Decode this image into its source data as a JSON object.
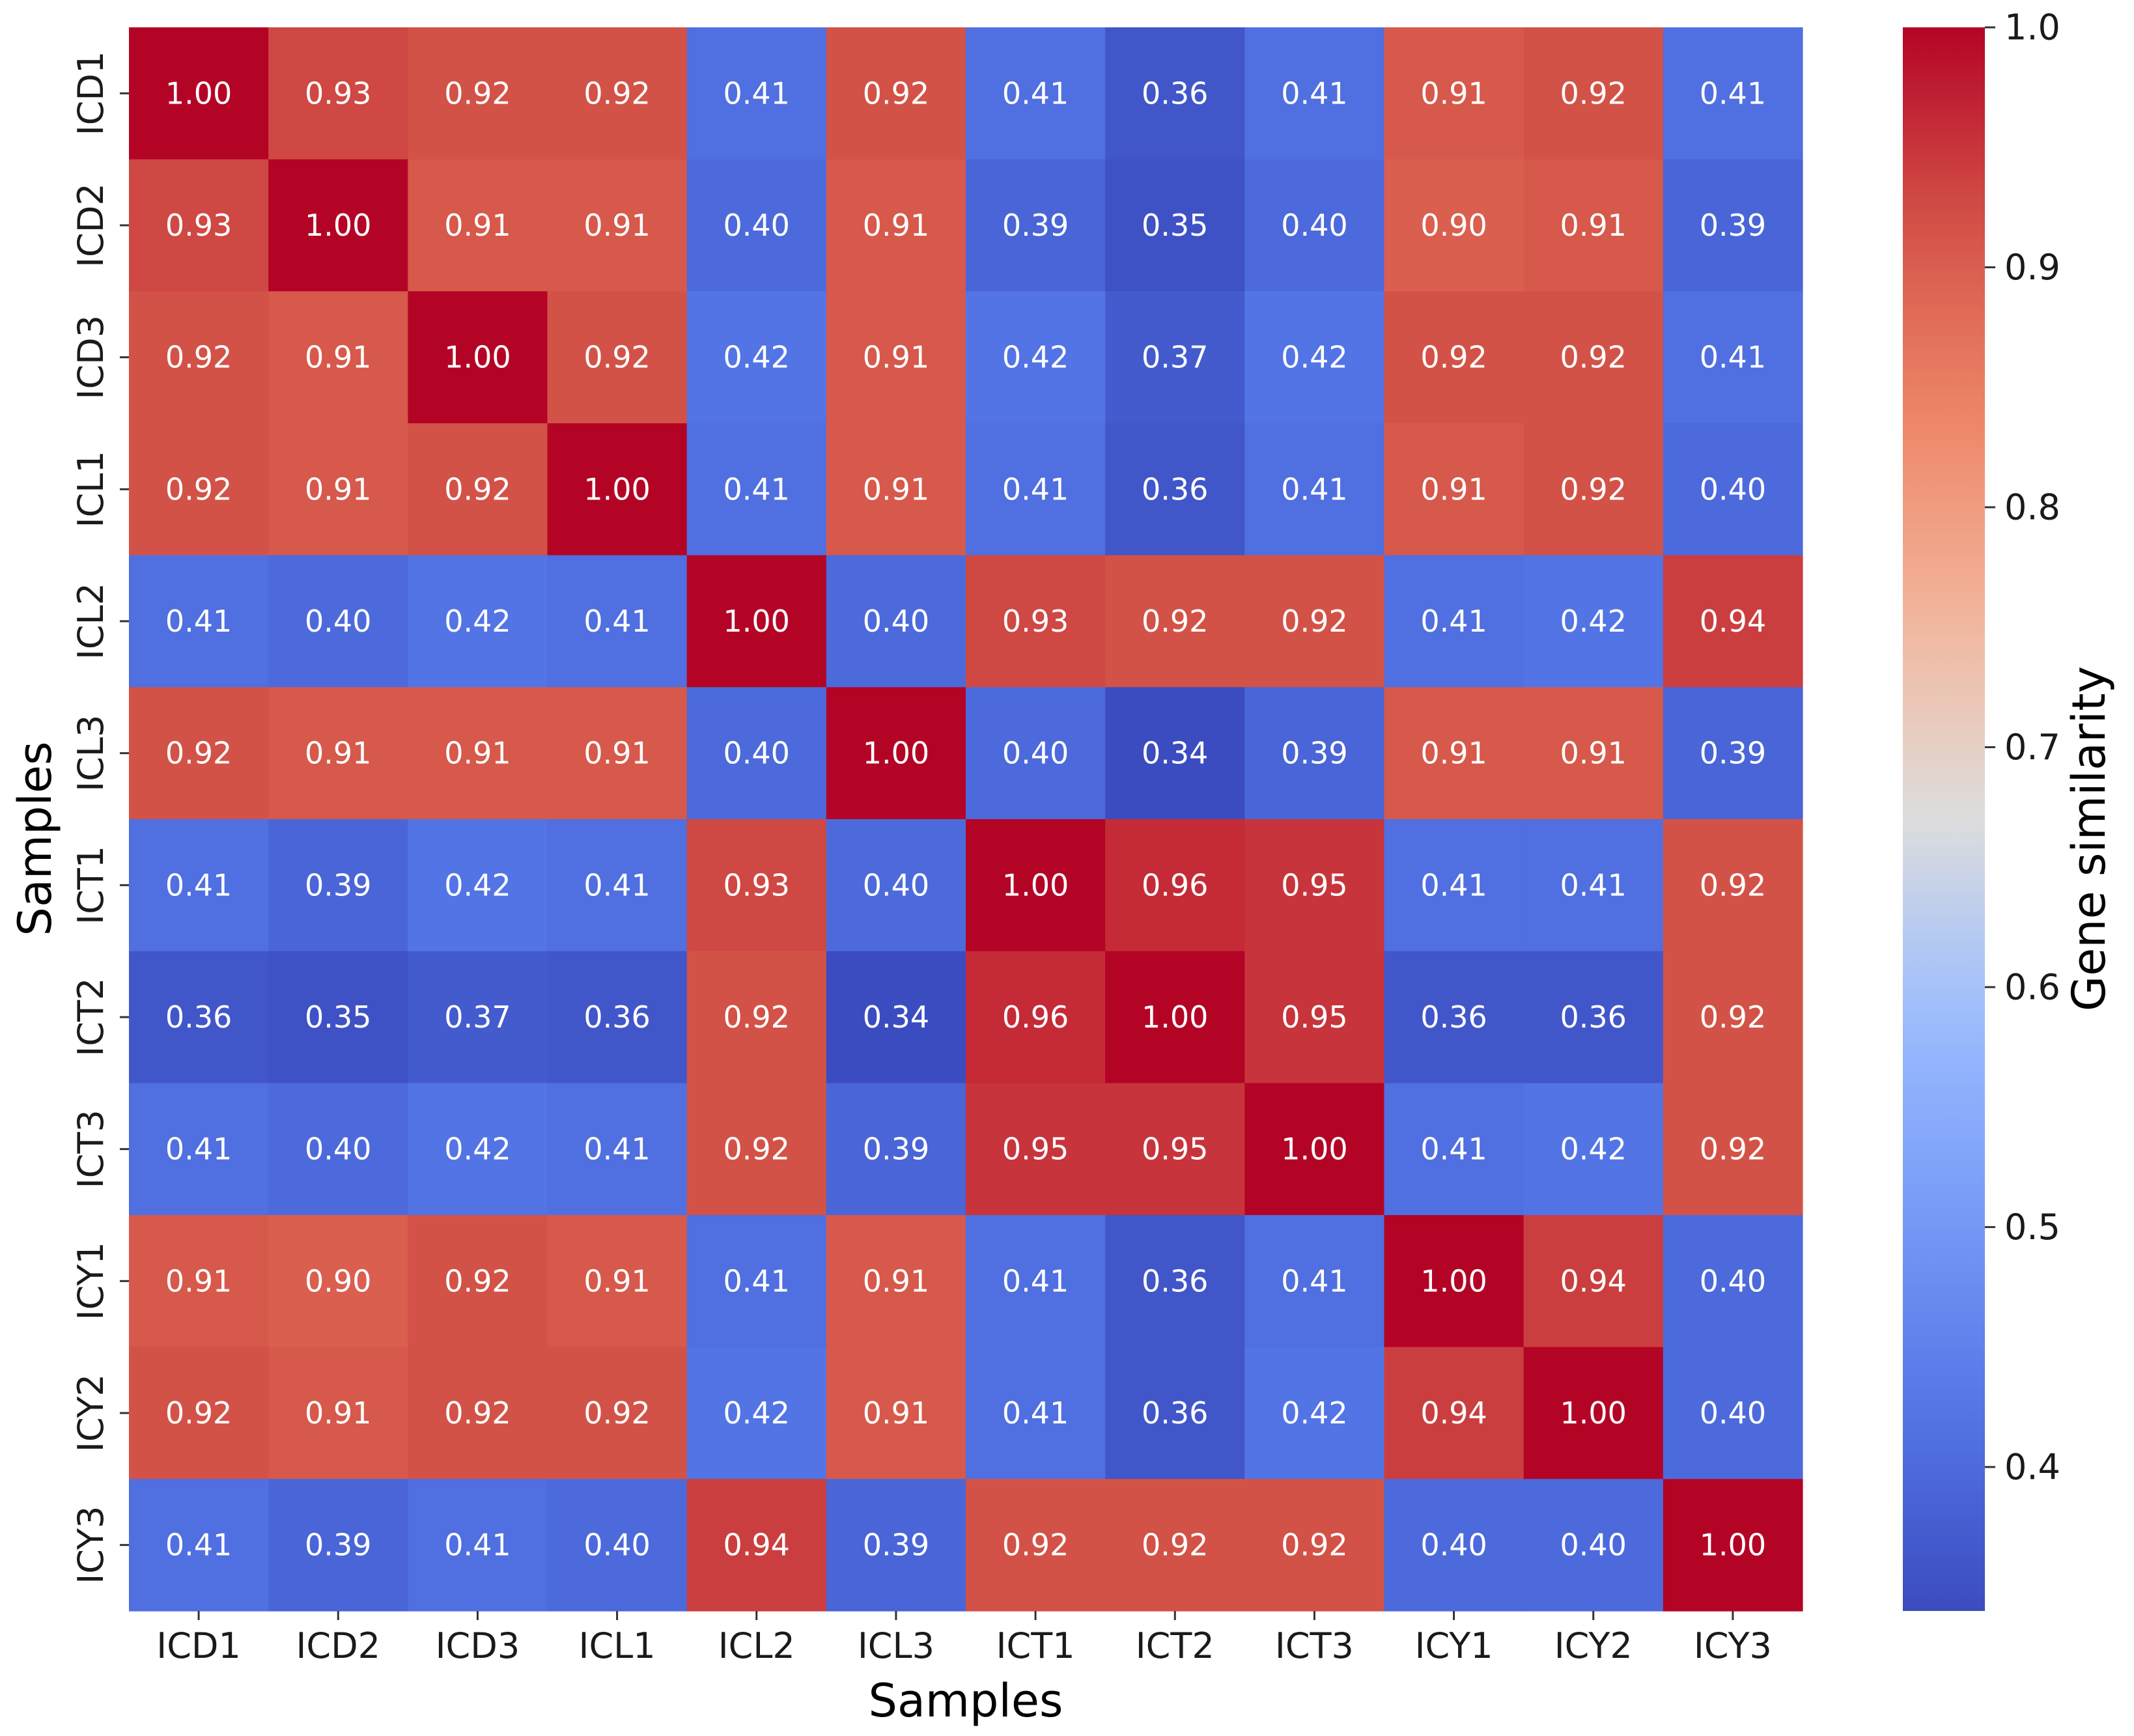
{
  "chart_data": {
    "type": "heatmap",
    "x_categories": [
      "ICD1",
      "ICD2",
      "ICD3",
      "ICL1",
      "ICL2",
      "ICL3",
      "ICT1",
      "ICT2",
      "ICT3",
      "ICY1",
      "ICY2",
      "ICY3"
    ],
    "y_categories": [
      "ICD1",
      "ICD2",
      "ICD3",
      "ICL1",
      "ICL2",
      "ICL3",
      "ICT1",
      "ICT2",
      "ICT3",
      "ICY1",
      "ICY2",
      "ICY3"
    ],
    "values": [
      [
        1.0,
        0.93,
        0.92,
        0.92,
        0.41,
        0.92,
        0.41,
        0.36,
        0.41,
        0.91,
        0.92,
        0.41
      ],
      [
        0.93,
        1.0,
        0.91,
        0.91,
        0.4,
        0.91,
        0.39,
        0.35,
        0.4,
        0.9,
        0.91,
        0.39
      ],
      [
        0.92,
        0.91,
        1.0,
        0.92,
        0.42,
        0.91,
        0.42,
        0.37,
        0.42,
        0.92,
        0.92,
        0.41
      ],
      [
        0.92,
        0.91,
        0.92,
        1.0,
        0.41,
        0.91,
        0.41,
        0.36,
        0.41,
        0.91,
        0.92,
        0.4
      ],
      [
        0.41,
        0.4,
        0.42,
        0.41,
        1.0,
        0.4,
        0.93,
        0.92,
        0.92,
        0.41,
        0.42,
        0.94
      ],
      [
        0.92,
        0.91,
        0.91,
        0.91,
        0.4,
        1.0,
        0.4,
        0.34,
        0.39,
        0.91,
        0.91,
        0.39
      ],
      [
        0.41,
        0.39,
        0.42,
        0.41,
        0.93,
        0.4,
        1.0,
        0.96,
        0.95,
        0.41,
        0.41,
        0.92
      ],
      [
        0.36,
        0.35,
        0.37,
        0.36,
        0.92,
        0.34,
        0.96,
        1.0,
        0.95,
        0.36,
        0.36,
        0.92
      ],
      [
        0.41,
        0.4,
        0.42,
        0.41,
        0.92,
        0.39,
        0.95,
        0.95,
        1.0,
        0.41,
        0.42,
        0.92
      ],
      [
        0.91,
        0.9,
        0.92,
        0.91,
        0.41,
        0.91,
        0.41,
        0.36,
        0.41,
        1.0,
        0.94,
        0.4
      ],
      [
        0.92,
        0.91,
        0.92,
        0.92,
        0.42,
        0.91,
        0.41,
        0.36,
        0.42,
        0.94,
        1.0,
        0.4
      ],
      [
        0.41,
        0.39,
        0.41,
        0.4,
        0.94,
        0.39,
        0.92,
        0.92,
        0.92,
        0.4,
        0.4,
        1.0
      ]
    ],
    "value_format": "2 decimals",
    "xlabel": "Samples",
    "ylabel": "Samples",
    "colorbar": {
      "label": "Gene similarity",
      "colormap": "coolwarm",
      "vmin": 0.34,
      "vmax": 1.0,
      "ticks": [
        0.4,
        0.5,
        0.6,
        0.7,
        0.8,
        0.9,
        1.0
      ],
      "tick_labels": [
        "0.4",
        "0.5",
        "0.6",
        "0.7",
        "0.8",
        "0.9",
        "1.0"
      ],
      "placement": "right"
    }
  }
}
